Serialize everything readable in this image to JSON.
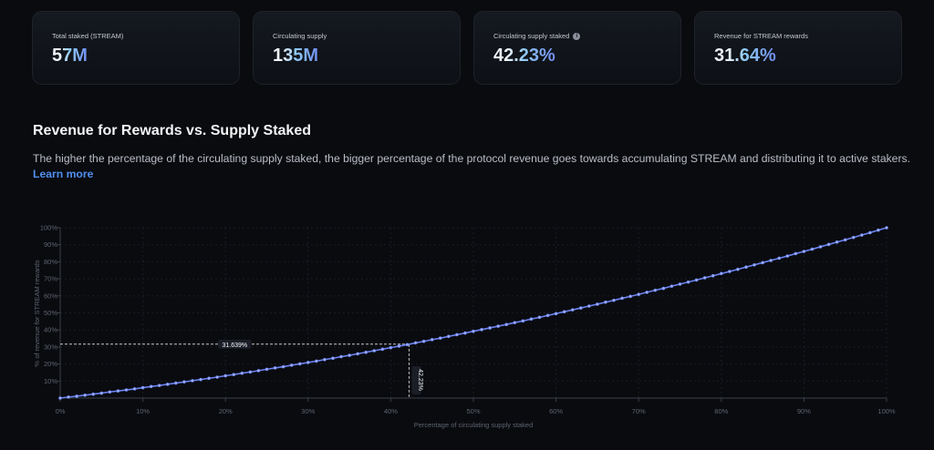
{
  "stats": [
    {
      "label": "Total staked (STREAM)",
      "value": "57M"
    },
    {
      "label": "Circulating supply",
      "value": "135M"
    },
    {
      "label": "Circulating supply staked",
      "value": "42.23%",
      "icon": "info-icon"
    },
    {
      "label": "Revenue for STREAM rewards",
      "value": "31.64%"
    }
  ],
  "section": {
    "title": "Revenue for Rewards vs. Supply Staked",
    "description": "The higher the percentage of the circulating supply staked, the bigger percentage of the protocol revenue goes towards accumulating STREAM and distributing it to active stakers.",
    "link": "Learn more"
  },
  "chart_data": {
    "type": "line",
    "xlabel": "Percentage of circulating supply staked",
    "ylabel": "% of revenue for STREAM rewards",
    "xlim": [
      0,
      100
    ],
    "ylim": [
      0,
      100
    ],
    "x_ticks": [
      "0%",
      "10%",
      "20%",
      "30%",
      "40%",
      "50%",
      "60%",
      "70%",
      "80%",
      "90%",
      "100%"
    ],
    "y_ticks": [
      "10%",
      "20%",
      "30%",
      "40%",
      "50%",
      "60%",
      "70%",
      "80%",
      "90%",
      "100%"
    ],
    "grid": true,
    "color": "#6b83f0",
    "x": [
      0,
      1,
      2,
      3,
      4,
      5,
      6,
      7,
      8,
      9,
      10,
      11,
      12,
      13,
      14,
      15,
      16,
      17,
      18,
      19,
      20,
      21,
      22,
      23,
      24,
      25,
      26,
      27,
      28,
      29,
      30,
      31,
      32,
      33,
      34,
      35,
      36,
      37,
      38,
      39,
      40,
      41,
      42,
      43,
      44,
      45,
      46,
      47,
      48,
      49,
      50,
      51,
      52,
      53,
      54,
      55,
      56,
      57,
      58,
      59,
      60,
      61,
      62,
      63,
      64,
      65,
      66,
      67,
      68,
      69,
      70,
      71,
      72,
      73,
      74,
      75,
      76,
      77,
      78,
      79,
      80,
      81,
      82,
      83,
      84,
      85,
      86,
      87,
      88,
      89,
      90,
      91,
      92,
      93,
      94,
      95,
      96,
      97,
      98,
      99,
      100
    ],
    "y": [
      0,
      0.6,
      1.1,
      1.7,
      2.3,
      2.9,
      3.6,
      4.2,
      4.8,
      5.4,
      6.1,
      6.8,
      7.4,
      8.1,
      8.8,
      9.5,
      10.2,
      10.9,
      11.6,
      12.3,
      13.1,
      13.8,
      14.6,
      15.3,
      16.1,
      16.9,
      17.7,
      18.4,
      19.3,
      20.1,
      20.9,
      21.7,
      22.6,
      23.4,
      24.3,
      25.1,
      26.0,
      26.9,
      27.8,
      28.7,
      29.6,
      30.5,
      31.4,
      32.4,
      33.3,
      34.3,
      35.2,
      36.2,
      37.2,
      38.2,
      39.2,
      40.2,
      41.2,
      42.2,
      43.2,
      44.3,
      45.3,
      46.4,
      47.4,
      48.5,
      49.6,
      50.7,
      51.8,
      52.9,
      54.0,
      55.1,
      56.3,
      57.4,
      58.6,
      59.7,
      60.9,
      62.1,
      63.3,
      64.4,
      65.7,
      66.9,
      68.1,
      69.3,
      70.6,
      71.8,
      73.1,
      74.3,
      75.6,
      76.9,
      78.2,
      79.5,
      80.8,
      82.1,
      83.4,
      84.8,
      86.1,
      87.4,
      88.8,
      90.2,
      91.6,
      92.9,
      94.3,
      95.7,
      97.1,
      98.6,
      100
    ],
    "marker": {
      "x": 42.23,
      "y": 31.639,
      "x_label": "42.23%",
      "y_label": "31.639%"
    }
  }
}
